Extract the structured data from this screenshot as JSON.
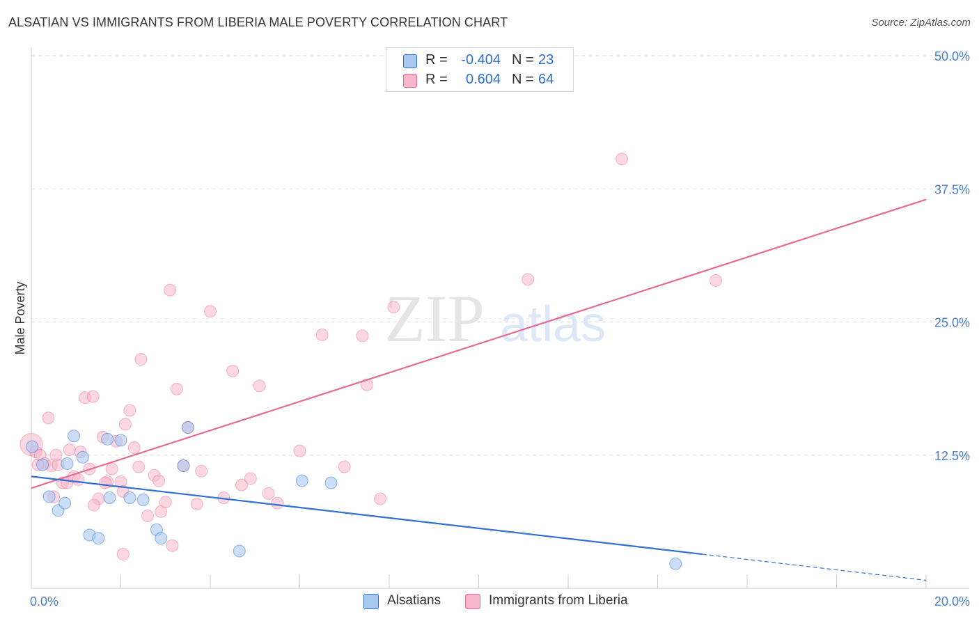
{
  "header": {
    "title": "ALSATIAN VS IMMIGRANTS FROM LIBERIA MALE POVERTY CORRELATION CHART",
    "source": "Source: ZipAtlas.com"
  },
  "watermark": {
    "zip": "ZIP",
    "atlas": "atlas"
  },
  "stats": [
    {
      "r_label": "R =",
      "r_value": "-0.404",
      "n_label": "N =",
      "n_value": "23",
      "color": "#a9c8f0"
    },
    {
      "r_label": "R =",
      "r_value": "0.604",
      "n_label": "N =",
      "n_value": "64",
      "color": "#f7b6c9"
    }
  ],
  "legend": [
    {
      "label": "Alsatians",
      "color": "#a9c8f0"
    },
    {
      "label": "Immigrants from Liberia",
      "color": "#f7b6c9"
    }
  ],
  "colors": {
    "blue_line": "#2f6fd1",
    "pink_line": "#e36b95",
    "blue_fill": "#a9c8f0",
    "pink_fill": "#f7b6c9",
    "tick_label": "#4a7fd0",
    "grid": "#dddddd"
  },
  "chart_data": {
    "type": "scatter",
    "title": "ALSATIAN VS IMMIGRANTS FROM LIBERIA MALE POVERTY CORRELATION CHART",
    "xlabel": "",
    "ylabel": "Male Poverty",
    "xlim": [
      0,
      20
    ],
    "ylim": [
      0,
      50
    ],
    "x_tick_labels": [
      {
        "value": 0,
        "label": "0.0%"
      },
      {
        "value": 20,
        "label": "20.0%"
      }
    ],
    "y_tick_labels": [
      {
        "value": 12.5,
        "label": "12.5%"
      },
      {
        "value": 25,
        "label": "25.0%"
      },
      {
        "value": 37.5,
        "label": "37.5%"
      },
      {
        "value": 50,
        "label": "50.0%"
      }
    ],
    "series": [
      {
        "name": "Alsatians",
        "points": [
          {
            "x": 0.02,
            "y": 13.3
          },
          {
            "x": 0.25,
            "y": 11.6
          },
          {
            "x": 0.4,
            "y": 8.6
          },
          {
            "x": 0.6,
            "y": 7.3
          },
          {
            "x": 0.75,
            "y": 8.0
          },
          {
            "x": 0.8,
            "y": 11.7
          },
          {
            "x": 0.95,
            "y": 14.3
          },
          {
            "x": 1.15,
            "y": 12.3
          },
          {
            "x": 1.3,
            "y": 5.0
          },
          {
            "x": 1.5,
            "y": 4.7
          },
          {
            "x": 1.7,
            "y": 14.0
          },
          {
            "x": 1.75,
            "y": 8.5
          },
          {
            "x": 2.0,
            "y": 13.9
          },
          {
            "x": 2.2,
            "y": 8.5
          },
          {
            "x": 2.5,
            "y": 8.3
          },
          {
            "x": 2.8,
            "y": 5.5
          },
          {
            "x": 2.9,
            "y": 4.7
          },
          {
            "x": 3.4,
            "y": 11.5
          },
          {
            "x": 3.5,
            "y": 15.1
          },
          {
            "x": 4.65,
            "y": 3.5
          },
          {
            "x": 6.05,
            "y": 10.1
          },
          {
            "x": 6.7,
            "y": 9.9
          },
          {
            "x": 14.4,
            "y": 2.3
          }
        ],
        "trend": {
          "x": [
            0,
            15
          ],
          "y": [
            10.5,
            3.2
          ]
        },
        "trend_extension": {
          "x": [
            15,
            20
          ],
          "y": [
            3.2,
            0.75
          ]
        }
      },
      {
        "name": "Immigrants from Liberia",
        "points": [
          {
            "x": 0.0,
            "y": 13.5
          },
          {
            "x": 0.1,
            "y": 12.8
          },
          {
            "x": 0.2,
            "y": 12.5
          },
          {
            "x": 0.3,
            "y": 11.7
          },
          {
            "x": 0.38,
            "y": 16.0
          },
          {
            "x": 0.45,
            "y": 11.5
          },
          {
            "x": 0.55,
            "y": 12.5
          },
          {
            "x": 0.6,
            "y": 11.6
          },
          {
            "x": 0.7,
            "y": 9.9
          },
          {
            "x": 0.8,
            "y": 9.9
          },
          {
            "x": 0.85,
            "y": 13.0
          },
          {
            "x": 0.95,
            "y": 10.5
          },
          {
            "x": 1.05,
            "y": 10.2
          },
          {
            "x": 1.1,
            "y": 12.8
          },
          {
            "x": 1.2,
            "y": 17.9
          },
          {
            "x": 1.3,
            "y": 11.2
          },
          {
            "x": 1.38,
            "y": 18.0
          },
          {
            "x": 1.5,
            "y": 8.4
          },
          {
            "x": 1.6,
            "y": 14.2
          },
          {
            "x": 1.7,
            "y": 10.0
          },
          {
            "x": 1.8,
            "y": 11.2
          },
          {
            "x": 1.9,
            "y": 13.8
          },
          {
            "x": 2.0,
            "y": 10.0
          },
          {
            "x": 2.1,
            "y": 15.4
          },
          {
            "x": 2.2,
            "y": 16.7
          },
          {
            "x": 2.3,
            "y": 13.2
          },
          {
            "x": 2.4,
            "y": 11.4
          },
          {
            "x": 2.45,
            "y": 21.5
          },
          {
            "x": 2.6,
            "y": 6.8
          },
          {
            "x": 2.75,
            "y": 10.6
          },
          {
            "x": 2.85,
            "y": 10.1
          },
          {
            "x": 2.9,
            "y": 7.2
          },
          {
            "x": 3.0,
            "y": 8.1
          },
          {
            "x": 3.1,
            "y": 28.0
          },
          {
            "x": 3.25,
            "y": 18.7
          },
          {
            "x": 3.4,
            "y": 11.5
          },
          {
            "x": 3.5,
            "y": 15.1
          },
          {
            "x": 3.7,
            "y": 7.9
          },
          {
            "x": 3.8,
            "y": 11.0
          },
          {
            "x": 4.0,
            "y": 26.0
          },
          {
            "x": 4.3,
            "y": 8.5
          },
          {
            "x": 4.5,
            "y": 20.4
          },
          {
            "x": 4.7,
            "y": 9.7
          },
          {
            "x": 4.9,
            "y": 10.3
          },
          {
            "x": 5.1,
            "y": 19.0
          },
          {
            "x": 5.3,
            "y": 8.9
          },
          {
            "x": 5.5,
            "y": 8.0
          },
          {
            "x": 6.0,
            "y": 12.9
          },
          {
            "x": 6.5,
            "y": 23.8
          },
          {
            "x": 7.0,
            "y": 11.4
          },
          {
            "x": 7.4,
            "y": 23.7
          },
          {
            "x": 7.5,
            "y": 19.1
          },
          {
            "x": 7.8,
            "y": 8.4
          },
          {
            "x": 8.1,
            "y": 26.4
          },
          {
            "x": 11.1,
            "y": 29.0
          },
          {
            "x": 13.2,
            "y": 40.3
          },
          {
            "x": 15.3,
            "y": 28.9
          },
          {
            "x": 0.15,
            "y": 11.6
          },
          {
            "x": 1.65,
            "y": 9.9
          },
          {
            "x": 2.05,
            "y": 9.1
          },
          {
            "x": 0.5,
            "y": 8.6
          },
          {
            "x": 1.4,
            "y": 7.8
          },
          {
            "x": 3.15,
            "y": 4.0
          },
          {
            "x": 2.05,
            "y": 3.2
          }
        ],
        "trend": {
          "x": [
            0,
            20
          ],
          "y": [
            9.4,
            36.5
          ]
        }
      }
    ]
  }
}
